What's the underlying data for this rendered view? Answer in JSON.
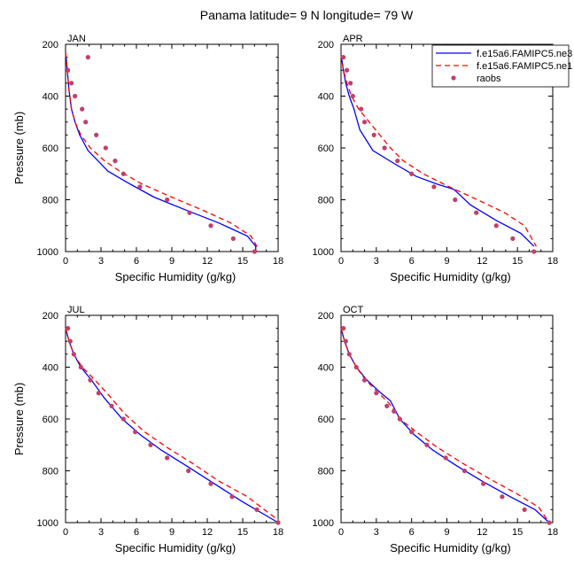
{
  "title": "Panama  latitude= 9 N longitude= 79 W",
  "legend": {
    "entries": [
      {
        "label": "f.e15a6.FAMIPC5.ne3",
        "color": "#0000ff",
        "style": "solid"
      },
      {
        "label": "f.e15a6.FAMIPC5.ne1",
        "color": "#ff0000",
        "style": "dashed"
      },
      {
        "label": "raobs",
        "color": "#c0406a",
        "style": "marker"
      }
    ]
  },
  "chart_data": [
    {
      "type": "line",
      "label": "JAN",
      "xlabel": "Specific Humidity (g/kg)",
      "ylabel": "Pressure (mb)",
      "xlim": [
        0,
        18
      ],
      "ylim": [
        1000,
        200
      ],
      "y_inverted": true,
      "xticks": [
        0,
        3,
        6,
        9,
        12,
        15,
        18
      ],
      "yticks": [
        200,
        400,
        600,
        800,
        1000
      ],
      "series": [
        {
          "name": "f.e15a6.FAMIPC5.ne3",
          "x": [
            0.0,
            0.15,
            0.3,
            0.5,
            0.8,
            1.2,
            1.9,
            3.6,
            5.5,
            7.5,
            10.2,
            13.0,
            15.4,
            16.1,
            16.1
          ],
          "y": [
            230,
            300,
            380,
            450,
            500,
            550,
            610,
            690,
            740,
            790,
            840,
            890,
            940,
            980,
            1000
          ]
        },
        {
          "name": "f.e15a6.FAMIPC5.ne1",
          "x": [
            0.0,
            0.15,
            0.3,
            0.5,
            0.8,
            1.3,
            2.1,
            3.3,
            4.6,
            6.5,
            9.0,
            11.6,
            14.0,
            15.7,
            16.2,
            16.2
          ],
          "y": [
            230,
            300,
            380,
            450,
            500,
            550,
            600,
            650,
            690,
            740,
            790,
            840,
            890,
            940,
            980,
            1000
          ]
        },
        {
          "name": "raobs",
          "x": [
            1.9,
            0.2,
            0.5,
            0.8,
            1.4,
            1.7,
            2.6,
            3.4,
            4.2,
            4.9,
            6.3,
            8.6,
            10.5,
            12.3,
            14.2,
            16.0
          ],
          "y": [
            250,
            300,
            350,
            400,
            450,
            500,
            550,
            600,
            650,
            700,
            750,
            800,
            850,
            900,
            950,
            1000
          ]
        }
      ]
    },
    {
      "type": "line",
      "label": "APR",
      "xlabel": "Specific Humidity (g/kg)",
      "ylabel": "",
      "xlim": [
        0,
        18
      ],
      "ylim": [
        1000,
        200
      ],
      "y_inverted": true,
      "xticks": [
        0,
        3,
        6,
        9,
        12,
        15,
        18
      ],
      "yticks": [
        200,
        400,
        600,
        800,
        1000
      ],
      "series": [
        {
          "name": "f.e15a6.FAMIPC5.ne3",
          "x": [
            0.0,
            0.2,
            0.4,
            0.7,
            1.1,
            1.6,
            2.7,
            4.5,
            6.4,
            8.2,
            9.6,
            11.0,
            13.2,
            15.3,
            16.4
          ],
          "y": [
            240,
            300,
            350,
            400,
            450,
            530,
            610,
            660,
            710,
            740,
            760,
            820,
            880,
            930,
            980
          ]
        },
        {
          "name": "f.e15a6.FAMIPC5.ne1",
          "x": [
            0.0,
            0.2,
            0.5,
            0.9,
            1.5,
            2.4,
            3.3,
            4.2,
            5.3,
            7.0,
            9.2,
            11.6,
            13.9,
            15.6,
            16.6
          ],
          "y": [
            240,
            300,
            350,
            400,
            450,
            500,
            550,
            600,
            650,
            700,
            750,
            800,
            850,
            900,
            980
          ]
        },
        {
          "name": "raobs",
          "x": [
            0.2,
            0.5,
            0.8,
            1.0,
            1.7,
            2.0,
            2.8,
            3.7,
            4.8,
            6.0,
            7.9,
            9.7,
            11.5,
            13.2,
            14.6,
            16.4
          ],
          "y": [
            250,
            300,
            350,
            400,
            450,
            500,
            550,
            600,
            650,
            700,
            750,
            800,
            850,
            900,
            950,
            1000
          ]
        }
      ]
    },
    {
      "type": "line",
      "label": "JUL",
      "xlabel": "Specific Humidity (g/kg)",
      "ylabel": "Pressure (mb)",
      "xlim": [
        0,
        18
      ],
      "ylim": [
        1000,
        200
      ],
      "y_inverted": true,
      "xticks": [
        0,
        3,
        6,
        9,
        12,
        15,
        18
      ],
      "yticks": [
        200,
        400,
        600,
        800,
        1000
      ],
      "series": [
        {
          "name": "f.e15a6.FAMIPC5.ne3",
          "x": [
            0.0,
            0.3,
            0.7,
            1.3,
            2.2,
            3.3,
            4.8,
            6.3,
            8.1,
            10.2,
            12.6,
            15.0,
            18.0
          ],
          "y": [
            250,
            300,
            350,
            400,
            450,
            520,
            600,
            660,
            720,
            780,
            850,
            920,
            1000
          ]
        },
        {
          "name": "f.e15a6.FAMIPC5.ne1",
          "x": [
            0.0,
            0.3,
            0.7,
            1.4,
            2.5,
            3.7,
            5.0,
            6.7,
            8.6,
            10.7,
            13.0,
            15.4,
            18.0
          ],
          "y": [
            250,
            300,
            350,
            400,
            450,
            510,
            580,
            650,
            710,
            770,
            840,
            900,
            990
          ]
        },
        {
          "name": "raobs",
          "x": [
            0.2,
            0.4,
            0.7,
            1.3,
            2.1,
            2.8,
            3.9,
            4.9,
            5.9,
            7.2,
            8.6,
            10.4,
            12.3,
            14.1,
            16.2,
            18.0
          ],
          "y": [
            250,
            300,
            350,
            400,
            450,
            500,
            550,
            600,
            650,
            700,
            750,
            800,
            850,
            900,
            950,
            1000
          ]
        }
      ]
    },
    {
      "type": "line",
      "label": "OCT",
      "xlabel": "Specific Humidity (g/kg)",
      "ylabel": "",
      "xlim": [
        0,
        18
      ],
      "ylim": [
        1000,
        200
      ],
      "y_inverted": true,
      "xticks": [
        0,
        3,
        6,
        9,
        12,
        15,
        18
      ],
      "yticks": [
        200,
        400,
        600,
        800,
        1000
      ],
      "series": [
        {
          "name": "f.e15a6.FAMIPC5.ne3",
          "x": [
            0.0,
            0.3,
            0.7,
            1.3,
            2.2,
            3.4,
            4.2,
            5.0,
            6.2,
            7.8,
            9.8,
            12.0,
            14.4,
            16.5,
            17.7
          ],
          "y": [
            250,
            300,
            350,
            400,
            450,
            500,
            530,
            600,
            660,
            720,
            780,
            840,
            900,
            950,
            1000
          ]
        },
        {
          "name": "f.e15a6.FAMIPC5.ne1",
          "x": [
            0.0,
            0.3,
            0.7,
            1.3,
            2.1,
            3.2,
            4.1,
            5.0,
            6.4,
            8.2,
            10.3,
            12.6,
            15.0,
            16.8,
            17.7
          ],
          "y": [
            250,
            300,
            350,
            400,
            450,
            500,
            540,
            600,
            650,
            710,
            770,
            830,
            890,
            940,
            1000
          ]
        },
        {
          "name": "raobs",
          "x": [
            0.2,
            0.4,
            0.7,
            1.3,
            2.0,
            3.0,
            3.9,
            4.5,
            5.0,
            6.0,
            7.3,
            8.9,
            10.5,
            12.1,
            13.7,
            15.6,
            17.7
          ],
          "y": [
            250,
            300,
            350,
            400,
            450,
            500,
            550,
            570,
            600,
            650,
            700,
            750,
            800,
            850,
            900,
            950,
            1000
          ]
        }
      ]
    }
  ]
}
